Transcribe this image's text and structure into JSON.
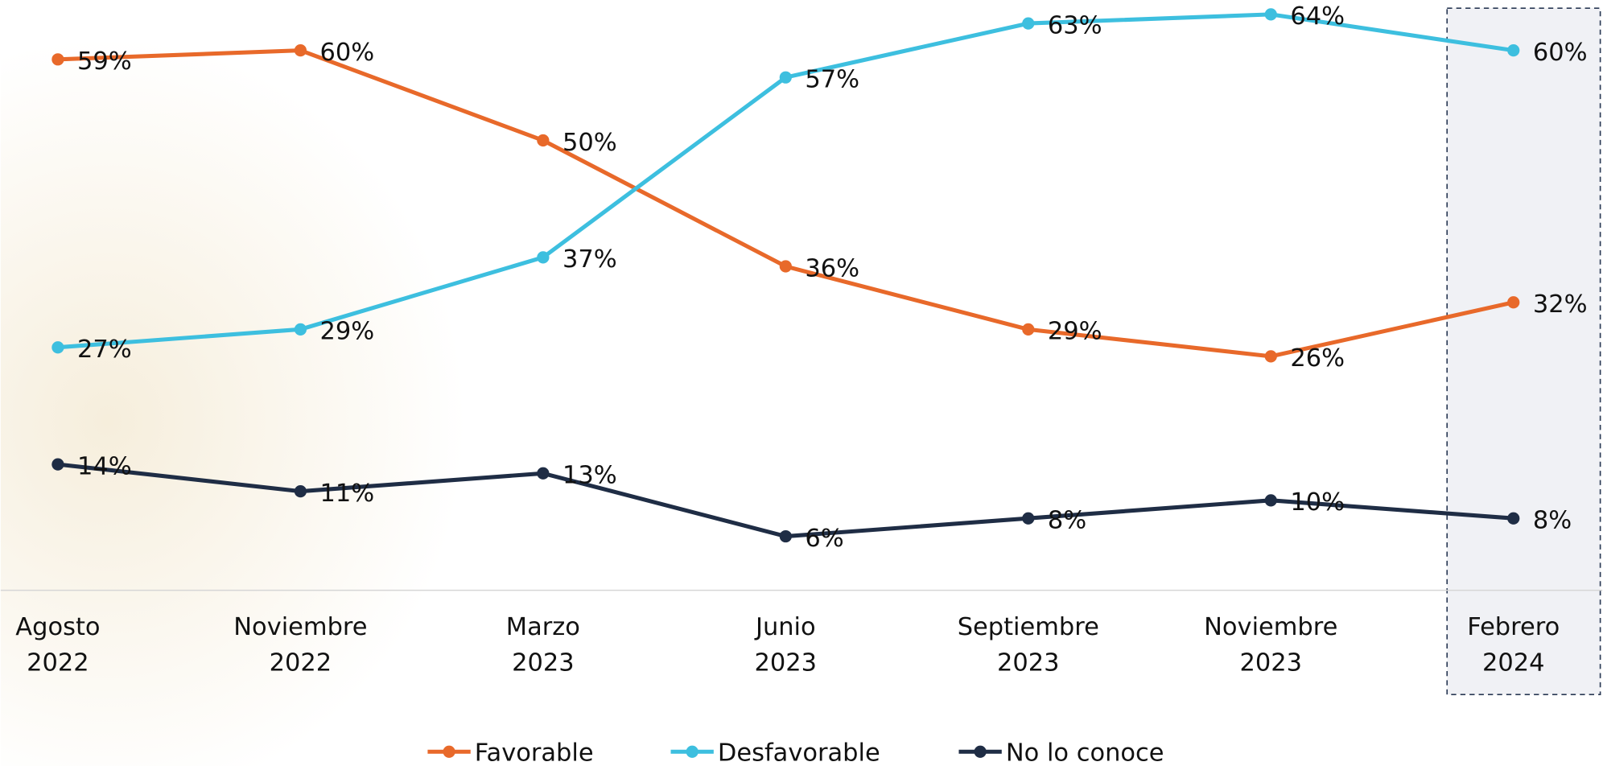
{
  "chart_data": {
    "type": "line",
    "categories": [
      [
        "Agosto",
        "2022"
      ],
      [
        "Noviembre",
        "2022"
      ],
      [
        "Marzo",
        "2023"
      ],
      [
        "Junio",
        "2023"
      ],
      [
        "Septiembre",
        "2023"
      ],
      [
        "Noviembre",
        "2023"
      ],
      [
        "Febrero",
        "2024"
      ]
    ],
    "series": [
      {
        "name": "Favorable",
        "color": "#e8692a",
        "values": [
          59,
          60,
          50,
          36,
          29,
          26,
          32
        ],
        "value_labels": [
          "59%",
          "60%",
          "50%",
          "36%",
          "29%",
          "26%",
          "32%"
        ]
      },
      {
        "name": "Desfavorable",
        "color": "#3dbfdf",
        "values": [
          27,
          29,
          37,
          57,
          63,
          64,
          60
        ],
        "value_labels": [
          "27%",
          "29%",
          "37%",
          "57%",
          "63%",
          "64%",
          "60%"
        ]
      },
      {
        "name": "No lo conoce",
        "color": "#1f2d45",
        "values": [
          14,
          11,
          13,
          6,
          8,
          10,
          8
        ],
        "value_labels": [
          "14%",
          "11%",
          "13%",
          "6%",
          "8%",
          "10%",
          "8%"
        ]
      }
    ],
    "ylim": [
      0,
      65.6
    ],
    "legend": "bottom"
  }
}
